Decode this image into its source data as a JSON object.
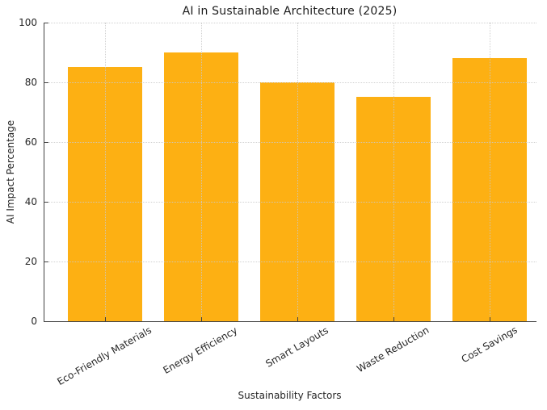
{
  "chart_data": {
    "type": "bar",
    "title": "AI in Sustainable Architecture (2025)",
    "xlabel": "Sustainability Factors",
    "ylabel": "AI Impact Percentage",
    "categories": [
      "Eco-Friendly Materials",
      "Energy Efficiency",
      "Smart Layouts",
      "Waste Reduction",
      "Cost Savings"
    ],
    "values": [
      85,
      90,
      80,
      75,
      88
    ],
    "ylim": [
      0,
      100
    ],
    "yticks": [
      0,
      20,
      40,
      60,
      80,
      100
    ],
    "bar_color": "#FDB013",
    "grid": true,
    "grid_style": "dotted",
    "grid_axes": "both",
    "legend_position": "none",
    "xticklabel_rotation_deg": 30
  }
}
